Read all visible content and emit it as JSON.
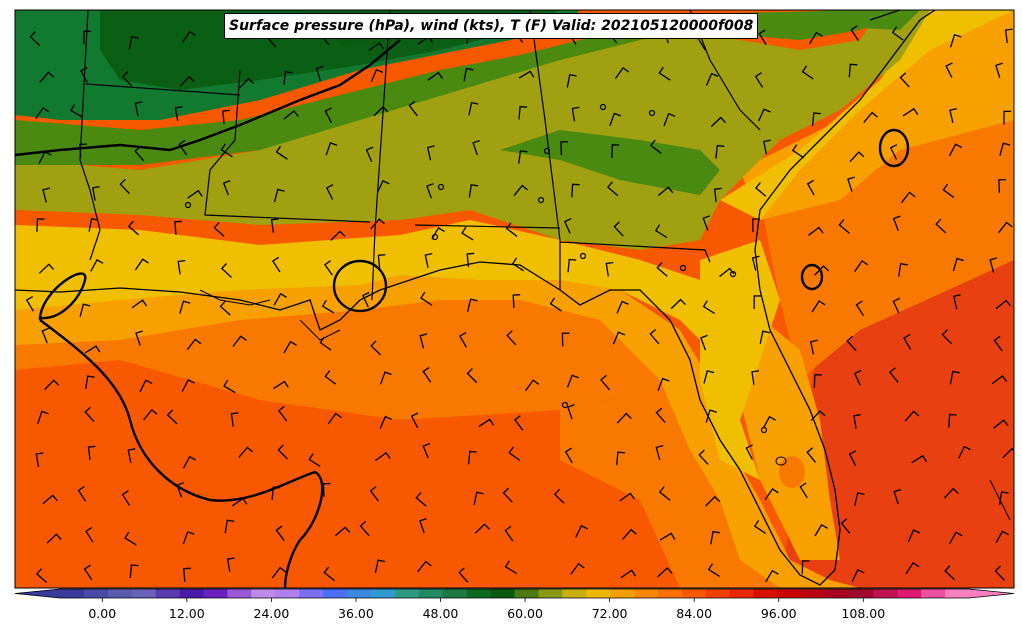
{
  "map": {
    "title": "Surface pressure (hPa), wind (kts), T (F) Valid: 202105120000f008"
  },
  "colorbar": {
    "tick_labels": [
      "0.00",
      "12.00",
      "24.00",
      "36.00",
      "48.00",
      "60.00",
      "72.00",
      "84.00",
      "96.00",
      "108.00"
    ],
    "tick_values": [
      0,
      12,
      24,
      36,
      48,
      60,
      72,
      84,
      96,
      108
    ],
    "range": [
      -6,
      123
    ],
    "colors": [
      "#3a3a9a",
      "#4a4aa8",
      "#5a5ab0",
      "#6a62b8",
      "#5a3ab0",
      "#4a1aa8",
      "#6a20c0",
      "#9a5ad8",
      "#c08ae8",
      "#b080f0",
      "#7a70f8",
      "#4a70f8",
      "#3a88e0",
      "#2e9ad0",
      "#2a9a80",
      "#208a60",
      "#1a7a40",
      "#0e6a20",
      "#0a5a10",
      "#4a7a10",
      "#8a9a10",
      "#c8b010",
      "#f0b800",
      "#f4a000",
      "#f88800",
      "#f87000",
      "#f85800",
      "#f04000",
      "#e82800",
      "#d81000",
      "#c80000",
      "#b80010",
      "#a80020",
      "#a00a30",
      "#c01050",
      "#e01a70",
      "#f050a0",
      "#f880c0"
    ]
  },
  "legend_scale": {
    "temperature_colors": {
      "green_dark": "#0a5f14",
      "green": "#127a30",
      "olive_green": "#4a8a10",
      "olive": "#a0a010",
      "yellow": "#f0c000",
      "orange_light": "#f8a000",
      "orange": "#f87800",
      "orange_red": "#f85800",
      "red_orange": "#e84010"
    }
  }
}
